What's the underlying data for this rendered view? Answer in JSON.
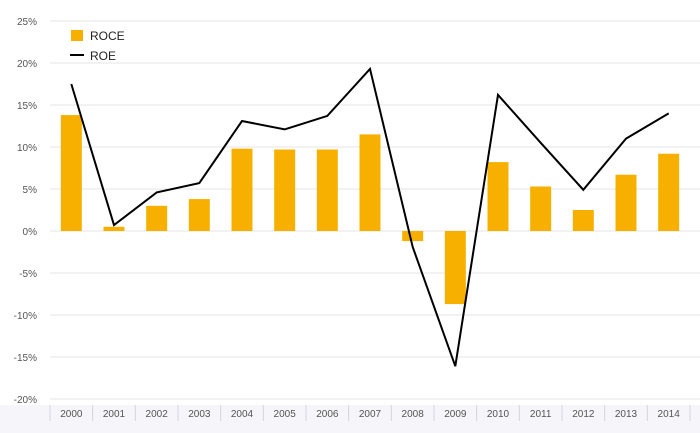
{
  "chart_data": {
    "type": "bar",
    "categories": [
      "2000",
      "2001",
      "2002",
      "2003",
      "2004",
      "2005",
      "2006",
      "2007",
      "2008",
      "2009",
      "2010",
      "2011",
      "2012",
      "2013",
      "2014"
    ],
    "series": [
      {
        "name": "ROCE",
        "type": "bar",
        "color": "#F8B000",
        "values": [
          13.8,
          0.5,
          3.0,
          3.8,
          9.8,
          9.7,
          9.7,
          11.5,
          -1.2,
          -8.7,
          8.2,
          5.3,
          2.5,
          6.7,
          9.2
        ]
      },
      {
        "name": "ROE",
        "type": "line",
        "color": "#000000",
        "values": [
          17.5,
          0.7,
          4.6,
          5.7,
          13.1,
          12.1,
          13.7,
          19.3,
          -1.9,
          -16.1,
          16.2,
          10.5,
          4.9,
          11.0,
          14.0
        ]
      }
    ],
    "yticks": [
      "25%",
      "20%",
      "15%",
      "10%",
      "5%",
      "0%",
      "-5%",
      "-10%",
      "-15%",
      "-20%"
    ],
    "ylim": [
      -20,
      25
    ],
    "grid": true,
    "legend_position": "top-left",
    "title": "",
    "xlabel": "",
    "ylabel": ""
  }
}
